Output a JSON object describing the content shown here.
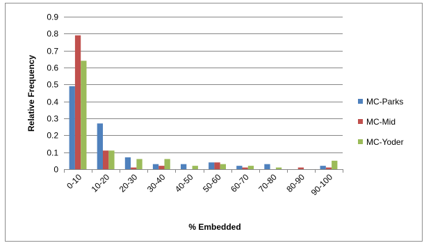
{
  "chart_data": {
    "type": "bar",
    "title": "",
    "xlabel": "% Embedded",
    "ylabel": "Relative Frequency",
    "ylim": [
      0,
      0.9
    ],
    "yticks": [
      "0",
      "0.1",
      "0.2",
      "0.3",
      "0.4",
      "0.5",
      "0.6",
      "0.7",
      "0.8",
      "0.9"
    ],
    "categories": [
      "0-10",
      "10-20",
      "20-30",
      "30-40",
      "40-50",
      "50-60",
      "60-70",
      "70-80",
      "80-90",
      "90-100"
    ],
    "grid": true,
    "legend_position": "right",
    "series": [
      {
        "name": "MC-Parks",
        "color": "#4f81bd",
        "values": [
          0.49,
          0.27,
          0.07,
          0.03,
          0.03,
          0.04,
          0.02,
          0.03,
          0.0,
          0.02
        ]
      },
      {
        "name": "MC-Mid",
        "color": "#c0504d",
        "values": [
          0.79,
          0.11,
          0.01,
          0.02,
          0.0,
          0.04,
          0.01,
          0.0,
          0.01,
          0.01
        ]
      },
      {
        "name": "MC-Yoder",
        "color": "#9bbb59",
        "values": [
          0.64,
          0.11,
          0.06,
          0.06,
          0.02,
          0.03,
          0.02,
          0.01,
          0.0,
          0.05
        ]
      }
    ]
  }
}
